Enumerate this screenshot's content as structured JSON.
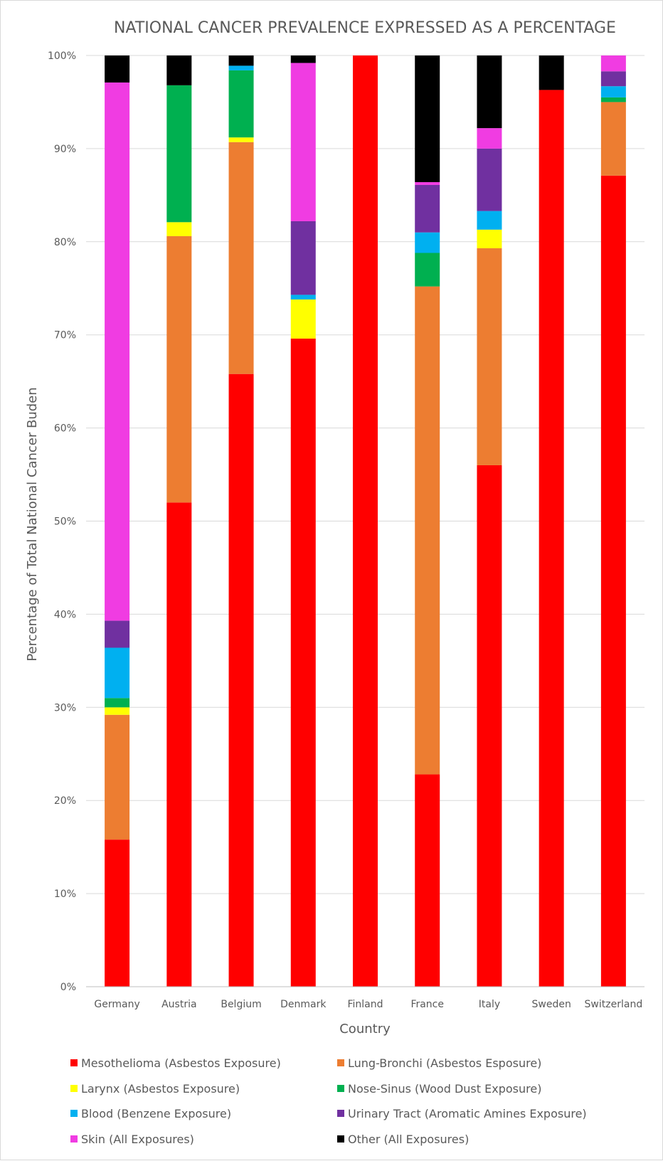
{
  "chart_data": {
    "type": "bar",
    "stacked": true,
    "title": "NATIONAL CANCER PREVALENCE EXPRESSED AS A PERCENTAGE",
    "xlabel": "Country",
    "ylabel": "Percentage of Total National Cancer Buden",
    "ylim": [
      0,
      100
    ],
    "y_ticks": [
      "0%",
      "10%",
      "20%",
      "30%",
      "40%",
      "50%",
      "60%",
      "70%",
      "80%",
      "90%",
      "100%"
    ],
    "grid": "horizontal",
    "legend_position": "bottom",
    "categories": [
      "Germany",
      "Austria",
      "Belgium",
      "Denmark",
      "Finland",
      "France",
      "Italy",
      "Sweden",
      "Switzerland"
    ],
    "series": [
      {
        "name": "Mesothelioma (Asbestos Exposure)",
        "color": "#ff0000",
        "values": [
          15.8,
          52.0,
          65.8,
          69.6,
          100.0,
          22.8,
          56.0,
          96.3,
          87.1
        ]
      },
      {
        "name": "Lung-Bronchi (Asbestos Esposure)",
        "color": "#ed7d31",
        "values": [
          13.4,
          28.6,
          24.9,
          0.0,
          0.0,
          52.4,
          23.3,
          0.0,
          7.9
        ]
      },
      {
        "name": "Larynx (Asbestos Exposure)",
        "color": "#ffff00",
        "values": [
          0.8,
          1.5,
          0.5,
          4.2,
          0.0,
          0.0,
          2.0,
          0.0,
          0.0
        ]
      },
      {
        "name": "Nose-Sinus  (Wood Dust Exposure)",
        "color": "#00b050",
        "values": [
          1.0,
          14.7,
          7.2,
          0.0,
          0.0,
          3.6,
          0.0,
          0.0,
          0.5
        ]
      },
      {
        "name": "Blood (Benzene Exposure)",
        "color": "#00b0f0",
        "values": [
          5.4,
          0.0,
          0.5,
          0.5,
          0.0,
          2.2,
          2.0,
          0.0,
          1.2
        ]
      },
      {
        "name": "Urinary Tract (Aromatic Amines Exposure)",
        "color": "#7030a0",
        "values": [
          2.9,
          0.0,
          0.0,
          7.9,
          0.0,
          5.1,
          6.7,
          0.0,
          1.6
        ]
      },
      {
        "name": "Skin (All Exposures)",
        "color": "#f03ce2",
        "values": [
          57.8,
          0.0,
          0.0,
          17.0,
          0.0,
          0.3,
          2.2,
          0.0,
          1.7
        ]
      },
      {
        "name": "Other (All Exposures)",
        "color": "#000000",
        "values": [
          2.9,
          3.2,
          1.1,
          0.8,
          0.0,
          13.6,
          7.8,
          3.7,
          0.0
        ]
      }
    ]
  }
}
